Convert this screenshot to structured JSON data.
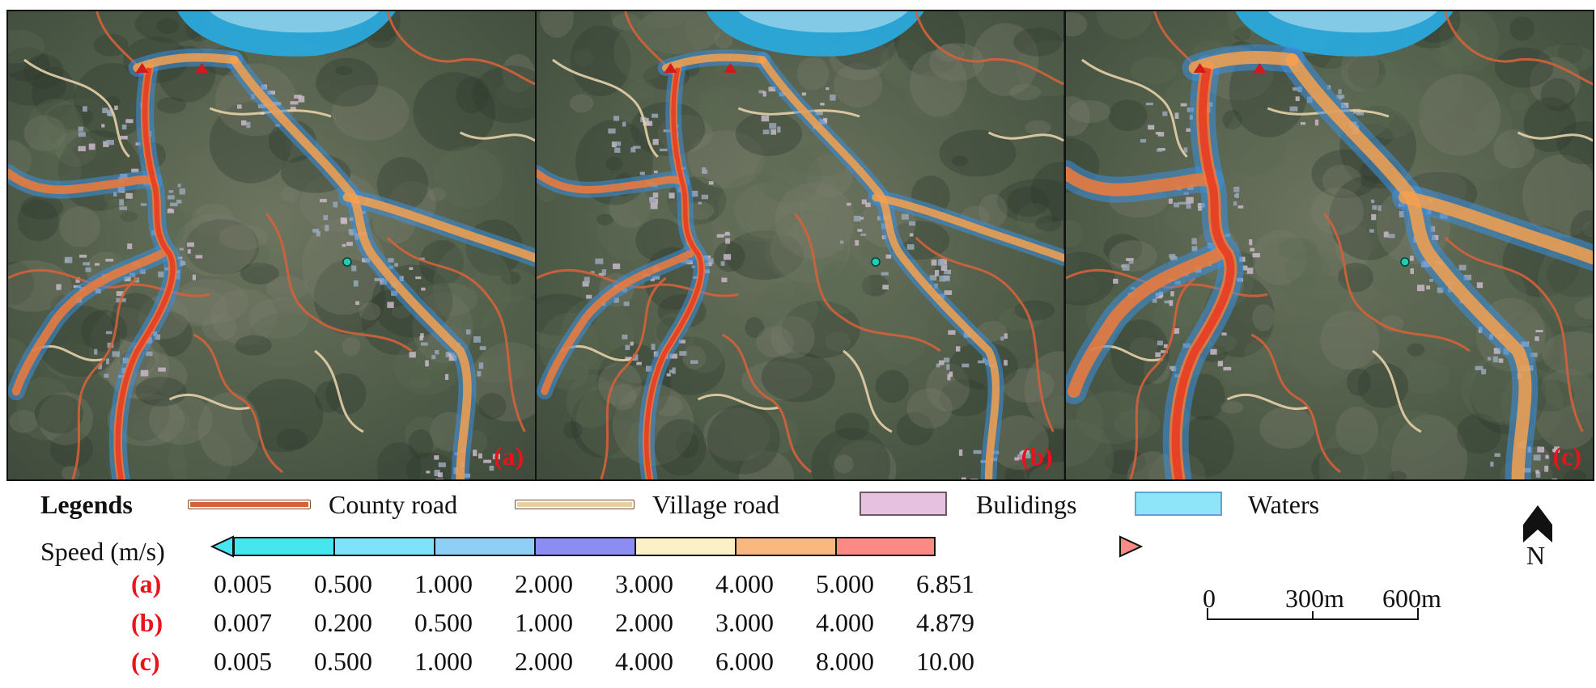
{
  "panels": [
    {
      "label": "(a)",
      "intensity": 0.55
    },
    {
      "label": "(b)",
      "intensity": 0.45
    },
    {
      "label": "(c)",
      "intensity": 1.0
    }
  ],
  "legend": {
    "title": "Legends",
    "items": [
      {
        "label": "County road",
        "symbol": "line",
        "color": "#d4623a"
      },
      {
        "label": "Village road",
        "symbol": "line",
        "color": "#e6d0a8"
      },
      {
        "label": "Bulidings",
        "symbol": "box",
        "color": "#e6c2e0",
        "border": "#6a5a66"
      },
      {
        "label": "Waters",
        "symbol": "box",
        "color": "#8ee4f8",
        "border": "#5aa6d6"
      }
    ]
  },
  "speed": {
    "title": "Speed (m/s)",
    "colors": [
      "#46e6f0",
      "#7ee2f8",
      "#8ecff8",
      "#8c8cf2",
      "#fbf0c8",
      "#fbb87c",
      "#fb8a86"
    ],
    "rows": [
      {
        "label": "(a)",
        "values": [
          "0.005",
          "0.500",
          "1.000",
          "2.000",
          "3.000",
          "4.000",
          "5.000",
          "6.851"
        ]
      },
      {
        "label": "(b)",
        "values": [
          "0.007",
          "0.200",
          "0.500",
          "1.000",
          "2.000",
          "3.000",
          "4.000",
          "4.879"
        ]
      },
      {
        "label": "(c)",
        "values": [
          "0.005",
          "0.500",
          "1.000",
          "2.000",
          "4.000",
          "6.000",
          "8.000",
          "10.00"
        ]
      }
    ]
  },
  "scale_bar": {
    "labels": [
      "0",
      "300m",
      "600m"
    ]
  },
  "north_arrow": {
    "label": "N",
    "icon": "north-arrow-icon"
  }
}
